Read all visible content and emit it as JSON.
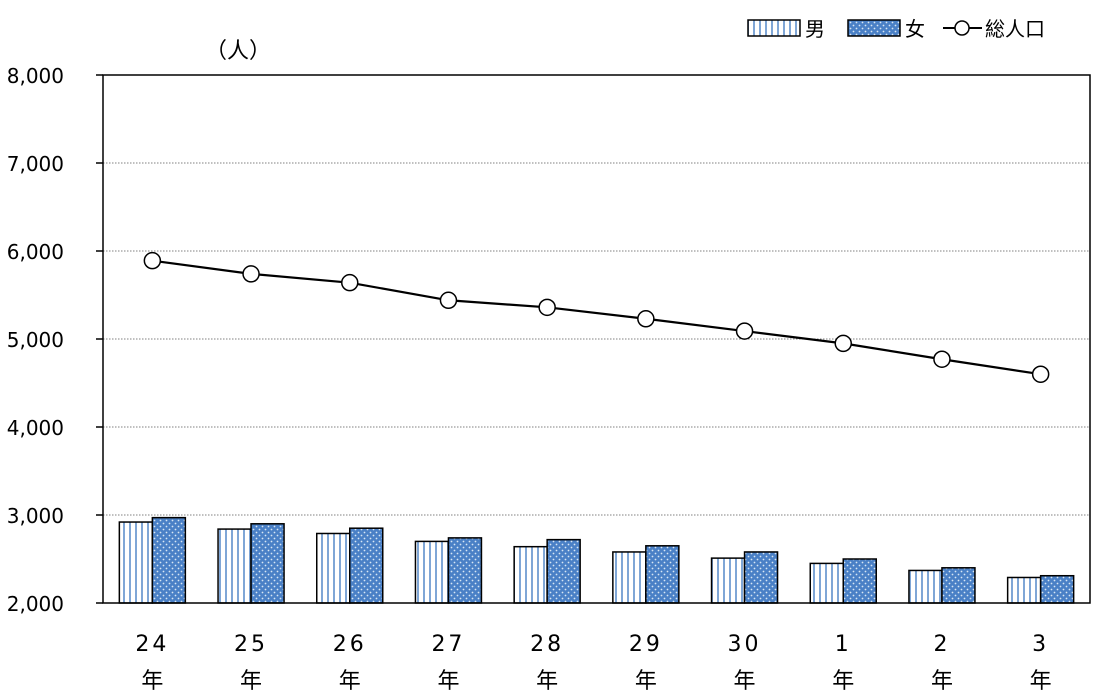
{
  "chart_data": {
    "type": "bar",
    "unit_label": "（人）",
    "categories": [
      {
        "number": "24",
        "suffix": "年"
      },
      {
        "number": "25",
        "suffix": "年"
      },
      {
        "number": "26",
        "suffix": "年"
      },
      {
        "number": "27",
        "suffix": "年"
      },
      {
        "number": "28",
        "suffix": "年"
      },
      {
        "number": "29",
        "suffix": "年"
      },
      {
        "number": "30",
        "suffix": "年"
      },
      {
        "number": "1",
        "suffix": "年"
      },
      {
        "number": "2",
        "suffix": "年"
      },
      {
        "number": "3",
        "suffix": "年"
      }
    ],
    "series": [
      {
        "name": "男",
        "kind": "bar",
        "pattern": "vertical-stripes",
        "values": [
          2920,
          2840,
          2790,
          2700,
          2640,
          2580,
          2510,
          2450,
          2370,
          2290
        ]
      },
      {
        "name": "女",
        "kind": "bar",
        "pattern": "blue-dots",
        "values": [
          2970,
          2900,
          2850,
          2740,
          2720,
          2650,
          2580,
          2500,
          2400,
          2310
        ]
      },
      {
        "name": "総人口",
        "kind": "line",
        "marker": "open-circle",
        "values": [
          5890,
          5740,
          5640,
          5440,
          5360,
          5230,
          5090,
          4950,
          4770,
          4600
        ]
      }
    ],
    "yticks": [
      "8,000",
      "7,000",
      "6,000",
      "5,000",
      "4,000",
      "3,000",
      "2,000"
    ],
    "ylim": [
      2000,
      8000
    ],
    "grid": "horizontal dotted",
    "legend_position": "top-right",
    "colors": {
      "male_stripe": "#7fa6d6",
      "female_fill": "#4a80c6",
      "female_dot": "#d8e6f4",
      "line": "#000000",
      "grid": "#808080"
    }
  }
}
